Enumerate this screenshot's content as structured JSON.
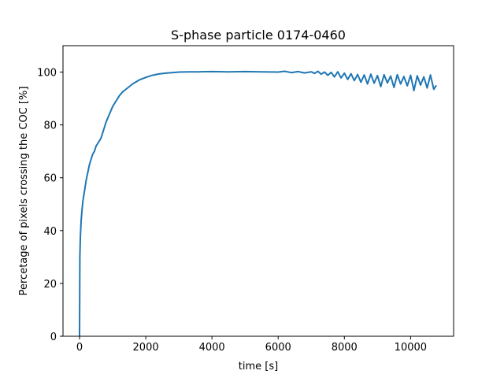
{
  "chart_data": {
    "type": "line",
    "title": "S-phase particle 0174-0460",
    "xlabel": "time [s]",
    "ylabel": "Percetage of pixels crossing the COC [%]",
    "xlim": [
      -500,
      11300
    ],
    "ylim": [
      0,
      110
    ],
    "xticks": [
      0,
      2000,
      4000,
      6000,
      8000,
      10000
    ],
    "yticks": [
      0,
      20,
      40,
      60,
      80,
      100
    ],
    "grid": false,
    "series": [
      {
        "color": "#1f77b4",
        "x": [
          0,
          10,
          25,
          50,
          75,
          100,
          150,
          200,
          250,
          300,
          350,
          400,
          450,
          500,
          550,
          600,
          650,
          700,
          750,
          800,
          900,
          1000,
          1100,
          1200,
          1300,
          1400,
          1500,
          1600,
          1800,
          2000,
          2200,
          2400,
          2600,
          2800,
          3000,
          3300,
          3600,
          4000,
          4500,
          5000,
          5500,
          6000,
          6200,
          6400,
          6600,
          6800,
          7000,
          7100,
          7200,
          7300,
          7400,
          7500,
          7600,
          7700,
          7800,
          7900,
          8000,
          8100,
          8200,
          8300,
          8400,
          8500,
          8600,
          8700,
          8800,
          8900,
          9000,
          9100,
          9200,
          9300,
          9400,
          9500,
          9600,
          9700,
          9800,
          9900,
          10000,
          10100,
          10200,
          10300,
          10400,
          10500,
          10600,
          10700,
          10780
        ],
        "y": [
          0,
          30,
          38,
          44,
          48,
          51,
          55,
          59,
          62,
          65,
          67,
          69,
          70,
          72,
          73,
          74,
          75,
          77,
          79,
          81,
          84,
          87,
          89,
          91,
          92.5,
          93.5,
          94.5,
          95.5,
          97,
          98,
          98.8,
          99.3,
          99.6,
          99.8,
          100,
          100.1,
          100.1,
          100.2,
          100.1,
          100.2,
          100.1,
          100.0,
          100.3,
          99.8,
          100.2,
          99.7,
          100.1,
          99.5,
          100.3,
          99.2,
          100.0,
          98.8,
          99.9,
          98.2,
          100.1,
          97.8,
          99.6,
          97.2,
          99.4,
          96.8,
          99.1,
          96.2,
          98.9,
          95.5,
          99.2,
          95.8,
          98.7,
          94.5,
          99.0,
          95.9,
          98.5,
          94.2,
          99.0,
          95.5,
          98.3,
          94.8,
          98.8,
          93.0,
          98.6,
          95.1,
          98.2,
          94.0,
          98.9,
          93.5,
          95.0
        ]
      }
    ]
  }
}
